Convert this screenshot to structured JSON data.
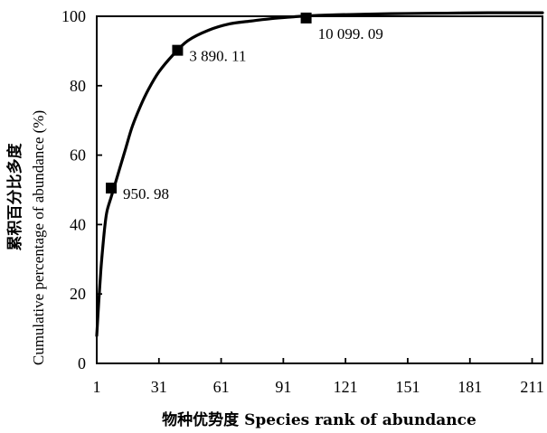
{
  "chart_data": {
    "type": "line",
    "xlabel": "物种优势度 Species rank of abundance",
    "ylabel_cn": "累积百分比多度",
    "ylabel_en": "Cumulative percentage of abundance (%)",
    "xlim": [
      1,
      216
    ],
    "ylim": [
      0,
      100
    ],
    "x_ticks": [
      1,
      31,
      61,
      91,
      121,
      151,
      181,
      211
    ],
    "y_ticks": [
      0,
      20,
      40,
      60,
      80,
      100
    ],
    "grid": false,
    "series": [
      {
        "x": [
          1,
          2,
          3,
          4,
          5,
          6,
          8,
          10,
          12,
          15,
          18,
          22,
          26,
          31,
          38,
          45,
          55,
          65,
          75,
          85,
          95,
          102,
          115,
          130,
          150,
          170,
          190,
          211,
          216
        ],
        "y": [
          8,
          18,
          27,
          34,
          40,
          44,
          48,
          52,
          56,
          62,
          68,
          74,
          79,
          84,
          89,
          93,
          96,
          97.8,
          98.6,
          99.3,
          99.8,
          100.1,
          100.4,
          100.6,
          100.8,
          100.9,
          101,
          101,
          101
        ]
      }
    ],
    "markers": [
      {
        "x": 8,
        "y": 50.5,
        "label": "950. 98"
      },
      {
        "x": 40,
        "y": 90.2,
        "label": "3 890. 11"
      },
      {
        "x": 102,
        "y": 99.5,
        "label": "10 099. 09"
      }
    ]
  }
}
